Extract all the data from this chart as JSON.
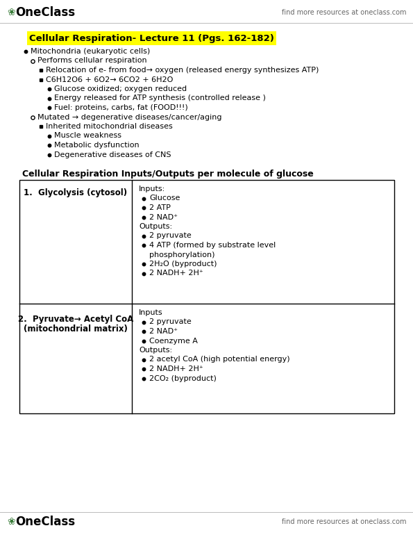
{
  "title": "Cellular Respiration- Lecture 11 (Pgs. 162-182)",
  "title_highlight": "#FFFF00",
  "header_text": "find more resources at oneclass.com",
  "oneclass_color": "#3a7d3a",
  "background": "#ffffff",
  "bullet_points": [
    {
      "level": 1,
      "text": "Mitochondria (eukaryotic cells)",
      "bullet": "filled_circle"
    },
    {
      "level": 2,
      "text": "Performs cellular respiration",
      "bullet": "open_circle"
    },
    {
      "level": 3,
      "text": "Relocation of e- from food→ oxygen (released energy synthesizes ATP)",
      "bullet": "filled_square"
    },
    {
      "level": 3,
      "text": "C6H12O6 + 6O2→ 6CO2 + 6H2O",
      "bullet": "filled_square"
    },
    {
      "level": 4,
      "text": "Glucose oxidized; oxygen reduced",
      "bullet": "filled_circle"
    },
    {
      "level": 4,
      "text": "Energy released for ATP synthesis (controlled release )",
      "bullet": "filled_circle"
    },
    {
      "level": 4,
      "text": "Fuel: proteins, carbs, fat (FOOD!!!)",
      "bullet": "filled_circle"
    },
    {
      "level": 2,
      "text": "Mutated → degenerative diseases/cancer/aging",
      "bullet": "open_circle"
    },
    {
      "level": 3,
      "text": "Inherited mitochondrial diseases",
      "bullet": "filled_square"
    },
    {
      "level": 4,
      "text": "Muscle weakness",
      "bullet": "filled_circle"
    },
    {
      "level": 4,
      "text": "Metabolic dysfunction",
      "bullet": "filled_circle"
    },
    {
      "level": 4,
      "text": "Degenerative diseases of CNS",
      "bullet": "filled_circle"
    }
  ],
  "table_title": "Cellular Respiration Inputs/Outputs per molecule of glucose",
  "row1_left_line1": "1.  Glycolysis (cytosol)",
  "row1_right": [
    {
      "type": "label",
      "text": "Inputs:"
    },
    {
      "type": "bullet",
      "text": "Glucose"
    },
    {
      "type": "bullet",
      "text": "2 ATP"
    },
    {
      "type": "bullet",
      "text": "2 NAD⁺"
    },
    {
      "type": "label",
      "text": "Outputs:"
    },
    {
      "type": "bullet",
      "text": "2 pyruvate"
    },
    {
      "type": "bullet",
      "text": "4 ATP (formed by substrate level"
    },
    {
      "type": "indent",
      "text": "phosphorylation)"
    },
    {
      "type": "bullet",
      "text": "2H₂O (byproduct)"
    },
    {
      "type": "bullet",
      "text": "2 NADH+ 2H⁺"
    }
  ],
  "row2_left_line1": "2.  Pyruvate→ Acetyl CoA",
  "row2_left_line2": "(mitochondrial matrix)",
  "row2_right": [
    {
      "type": "label",
      "text": "Inputs"
    },
    {
      "type": "bullet",
      "text": "2 pyruvate"
    },
    {
      "type": "bullet",
      "text": "2 NAD⁺"
    },
    {
      "type": "bullet",
      "text": "Coenzyme A"
    },
    {
      "type": "label",
      "text": "Outputs:"
    },
    {
      "type": "bullet",
      "text": "2 acetyl CoA (high potential energy)"
    },
    {
      "type": "bullet",
      "text": "2 NADH+ 2H⁺"
    },
    {
      "type": "bullet",
      "text": "2CO₂ (byproduct)"
    }
  ]
}
